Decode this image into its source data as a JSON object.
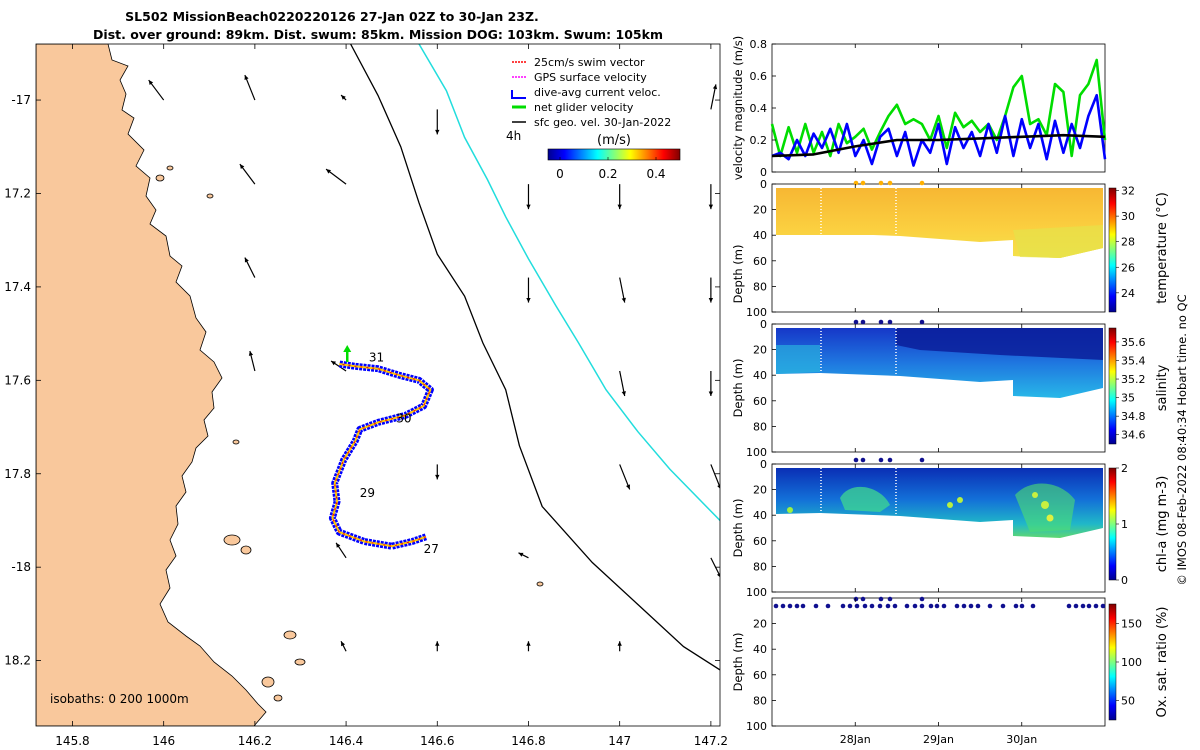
{
  "header": {
    "line1": "SL502 MissionBeach0220220126 27-Jan 02Z to 30-Jan 23Z.",
    "line2": "Dist. over ground: 89km. Dist. swum: 85km. Mission DOG: 103km. Swum: 105km"
  },
  "copyright": "© IMOS 08-Feb-2022 08:40:34 Hobart time. no QC",
  "colors": {
    "land": "#f9c89c",
    "gps": "#ff00ff",
    "swim": "#ff0000",
    "current": "#0000ff",
    "net": "#00dd00",
    "sfc": "#000000",
    "isobath200": "#000000",
    "isobath1000": "#22dddd"
  },
  "chart_data": [
    {
      "id": "map",
      "type": "scatter",
      "xlim": [
        145.72,
        147.22
      ],
      "ylim": [
        -18.34,
        -16.88
      ],
      "x_ticks": [
        145.8,
        146,
        146.2,
        146.4,
        146.6,
        146.8,
        147,
        147.2
      ],
      "y_ticks": [
        -17,
        -17.2,
        -17.4,
        -17.6,
        -17.8,
        -18,
        -18.2
      ],
      "x_tick_labels": [
        "145.8",
        "146",
        "146.2",
        "146.4",
        "146.6",
        "146.8",
        "147",
        "147.2"
      ],
      "y_tick_labels": [
        "-17",
        "17.2",
        "17.4",
        "17.6",
        "17.8",
        "-18",
        "18.2"
      ],
      "legend": {
        "entries": [
          "25cm/s swim vector",
          "GPS surface velocity",
          "dive-avg current veloc.",
          "net glider velocity",
          "sfc geo. vel. 30-Jan-2022"
        ],
        "scale_label": "4h",
        "colorbar_title": "(m/s)",
        "colorbar_ticks": [
          0,
          0.2,
          0.4
        ],
        "colorbar_tick_labels": [
          "0",
          "0.2",
          "0.4"
        ],
        "colorbar_range": [
          -0.05,
          0.5
        ]
      },
      "isobath_label": "isobaths: 0   200  1000m",
      "day_labels": [
        {
          "text": "31",
          "lon": 146.45,
          "lat": -17.56
        },
        {
          "text": "30",
          "lon": 146.51,
          "lat": -17.69
        },
        {
          "text": "29",
          "lon": 146.43,
          "lat": -17.85
        },
        {
          "text": "27",
          "lon": 146.57,
          "lat": -17.97
        }
      ],
      "track": [
        [
          146.575,
          -17.935
        ],
        [
          146.545,
          -17.945
        ],
        [
          146.5,
          -17.955
        ],
        [
          146.44,
          -17.945
        ],
        [
          146.385,
          -17.925
        ],
        [
          146.37,
          -17.895
        ],
        [
          146.38,
          -17.86
        ],
        [
          146.375,
          -17.82
        ],
        [
          146.395,
          -17.77
        ],
        [
          146.42,
          -17.73
        ],
        [
          146.43,
          -17.705
        ],
        [
          146.47,
          -17.69
        ],
        [
          146.53,
          -17.675
        ],
        [
          146.57,
          -17.655
        ],
        [
          146.585,
          -17.62
        ],
        [
          146.56,
          -17.6
        ],
        [
          146.52,
          -17.59
        ],
        [
          146.47,
          -17.575
        ],
        [
          146.42,
          -17.57
        ],
        [
          146.385,
          -17.565
        ]
      ],
      "isobath_200": [
        [
          146.41,
          -16.88
        ],
        [
          146.47,
          -16.99
        ],
        [
          146.52,
          -17.1
        ],
        [
          146.56,
          -17.22
        ],
        [
          146.6,
          -17.33
        ],
        [
          146.66,
          -17.42
        ],
        [
          146.7,
          -17.52
        ],
        [
          146.75,
          -17.62
        ],
        [
          146.78,
          -17.74
        ],
        [
          146.83,
          -17.87
        ],
        [
          146.94,
          -17.99
        ],
        [
          147.04,
          -18.08
        ],
        [
          147.14,
          -18.17
        ],
        [
          147.22,
          -18.22
        ]
      ],
      "isobath_1000": [
        [
          146.56,
          -16.88
        ],
        [
          146.62,
          -16.98
        ],
        [
          146.66,
          -17.08
        ],
        [
          146.71,
          -17.17
        ],
        [
          146.75,
          -17.25
        ],
        [
          146.8,
          -17.34
        ],
        [
          146.86,
          -17.44
        ],
        [
          146.91,
          -17.52
        ],
        [
          146.97,
          -17.62
        ],
        [
          147.04,
          -17.71
        ],
        [
          147.11,
          -17.79
        ],
        [
          147.22,
          -17.9
        ]
      ],
      "sfc_vectors": [
        {
          "lon": 146.0,
          "lat": -17.0,
          "u": -0.03,
          "v": 0.04
        },
        {
          "lon": 146.2,
          "lat": -17.0,
          "u": -0.02,
          "v": 0.05
        },
        {
          "lon": 146.4,
          "lat": -17.0,
          "u": -0.01,
          "v": 0.01
        },
        {
          "lon": 146.6,
          "lat": -17.02,
          "u": 0.0,
          "v": -0.05
        },
        {
          "lon": 147.2,
          "lat": -17.02,
          "u": 0.01,
          "v": 0.05
        },
        {
          "lon": 146.2,
          "lat": -17.18,
          "u": -0.03,
          "v": 0.04
        },
        {
          "lon": 146.4,
          "lat": -17.18,
          "u": -0.04,
          "v": 0.03
        },
        {
          "lon": 146.8,
          "lat": -17.18,
          "u": 0.0,
          "v": -0.05
        },
        {
          "lon": 147.0,
          "lat": -17.18,
          "u": 0.0,
          "v": -0.05
        },
        {
          "lon": 147.2,
          "lat": -17.18,
          "u": 0.0,
          "v": -0.05
        },
        {
          "lon": 146.2,
          "lat": -17.38,
          "u": -0.02,
          "v": 0.04
        },
        {
          "lon": 146.8,
          "lat": -17.38,
          "u": 0.0,
          "v": -0.05
        },
        {
          "lon": 147.0,
          "lat": -17.38,
          "u": 0.01,
          "v": -0.05
        },
        {
          "lon": 147.2,
          "lat": -17.38,
          "u": 0.0,
          "v": -0.05
        },
        {
          "lon": 146.2,
          "lat": -17.58,
          "u": -0.01,
          "v": 0.04
        },
        {
          "lon": 146.4,
          "lat": -17.58,
          "u": -0.03,
          "v": 0.02
        },
        {
          "lon": 147.0,
          "lat": -17.58,
          "u": 0.01,
          "v": -0.05
        },
        {
          "lon": 147.2,
          "lat": -17.58,
          "u": 0.0,
          "v": -0.05
        },
        {
          "lon": 146.6,
          "lat": -17.78,
          "u": 0.0,
          "v": -0.03
        },
        {
          "lon": 147.0,
          "lat": -17.78,
          "u": 0.02,
          "v": -0.05
        },
        {
          "lon": 147.2,
          "lat": -17.78,
          "u": 0.02,
          "v": -0.05
        },
        {
          "lon": 146.4,
          "lat": -17.98,
          "u": -0.02,
          "v": 0.03
        },
        {
          "lon": 146.8,
          "lat": -17.98,
          "u": -0.02,
          "v": 0.01
        },
        {
          "lon": 147.2,
          "lat": -17.98,
          "u": 0.02,
          "v": -0.04
        },
        {
          "lon": 146.4,
          "lat": -18.18,
          "u": -0.01,
          "v": 0.02
        },
        {
          "lon": 146.6,
          "lat": -18.18,
          "u": 0.0,
          "v": 0.02
        },
        {
          "lon": 146.8,
          "lat": -18.18,
          "u": 0.0,
          "v": 0.02
        },
        {
          "lon": 147.0,
          "lat": -18.18,
          "u": 0.0,
          "v": 0.02
        }
      ]
    },
    {
      "id": "velocity",
      "type": "line",
      "ylabel": "velocity magnitude (m/s)",
      "ylim": [
        0,
        0.8
      ],
      "y_ticks": [
        0,
        0.2,
        0.4,
        0.6,
        0.8
      ],
      "y_tick_labels": [
        "0",
        "0.2",
        "0.4",
        "0.6",
        "0.8"
      ],
      "xlim": [
        27.0,
        31.0
      ],
      "series": [
        {
          "name": "net glider velocity",
          "color": "#00dd00",
          "x": [
            27.0,
            27.1,
            27.2,
            27.3,
            27.4,
            27.5,
            27.6,
            27.7,
            27.8,
            27.9,
            28.0,
            28.1,
            28.2,
            28.3,
            28.4,
            28.5,
            28.6,
            28.7,
            28.8,
            28.9,
            29.0,
            29.1,
            29.2,
            29.3,
            29.4,
            29.5,
            29.6,
            29.7,
            29.8,
            29.9,
            30.0,
            30.1,
            30.2,
            30.3,
            30.4,
            30.5,
            30.6,
            30.7,
            30.8,
            30.9,
            31.0
          ],
          "values": [
            0.3,
            0.1,
            0.28,
            0.12,
            0.3,
            0.12,
            0.25,
            0.1,
            0.3,
            0.18,
            0.22,
            0.27,
            0.14,
            0.25,
            0.35,
            0.42,
            0.3,
            0.33,
            0.3,
            0.2,
            0.35,
            0.15,
            0.37,
            0.28,
            0.32,
            0.25,
            0.3,
            0.2,
            0.35,
            0.53,
            0.6,
            0.3,
            0.33,
            0.23,
            0.55,
            0.5,
            0.1,
            0.48,
            0.55,
            0.7,
            0.2
          ]
        },
        {
          "name": "dive-avg current veloc.",
          "color": "#0000ff",
          "x": [
            27.0,
            27.1,
            27.2,
            27.3,
            27.4,
            27.5,
            27.6,
            27.7,
            27.8,
            27.9,
            28.0,
            28.1,
            28.2,
            28.3,
            28.4,
            28.5,
            28.6,
            28.7,
            28.8,
            28.9,
            29.0,
            29.1,
            29.2,
            29.3,
            29.4,
            29.5,
            29.6,
            29.7,
            29.8,
            29.9,
            30.0,
            30.1,
            30.2,
            30.3,
            30.4,
            30.5,
            30.6,
            30.7,
            30.8,
            30.9,
            31.0
          ],
          "values": [
            0.1,
            0.12,
            0.08,
            0.2,
            0.1,
            0.24,
            0.15,
            0.27,
            0.12,
            0.3,
            0.1,
            0.2,
            0.05,
            0.22,
            0.27,
            0.1,
            0.25,
            0.04,
            0.2,
            0.12,
            0.3,
            0.05,
            0.28,
            0.15,
            0.25,
            0.1,
            0.3,
            0.12,
            0.35,
            0.1,
            0.33,
            0.15,
            0.3,
            0.08,
            0.32,
            0.12,
            0.3,
            0.15,
            0.35,
            0.48,
            0.08
          ]
        },
        {
          "name": "sfc geo. vel.",
          "color": "#000000",
          "x": [
            27.0,
            27.5,
            28.0,
            28.5,
            29.0,
            29.5,
            30.0,
            30.5,
            31.0
          ],
          "values": [
            0.1,
            0.11,
            0.16,
            0.2,
            0.2,
            0.21,
            0.22,
            0.23,
            0.22
          ]
        }
      ]
    },
    {
      "id": "temperature",
      "type": "heatmap",
      "ylabel": "Depth (m)",
      "colorbar_label": "temperature (°C)",
      "ylim": [
        0,
        100
      ],
      "y_ticks": [
        0,
        20,
        40,
        60,
        80,
        100
      ],
      "y_tick_labels": [
        "0",
        "20",
        "40",
        "60",
        "80",
        "100"
      ],
      "colorbar_range": [
        22.5,
        32.2
      ],
      "colorbar_ticks": [
        24,
        26,
        28,
        30,
        32
      ],
      "colorbar_tick_labels": [
        "24",
        "26",
        "28",
        "30",
        "32"
      ]
    },
    {
      "id": "salinity",
      "type": "heatmap",
      "ylabel": "Depth (m)",
      "colorbar_label": "salinity",
      "ylim": [
        0,
        100
      ],
      "y_ticks": [
        0,
        20,
        40,
        60,
        80,
        100
      ],
      "y_tick_labels": [
        "0",
        "20",
        "40",
        "60",
        "80",
        "100"
      ],
      "colorbar_range": [
        34.5,
        35.75
      ],
      "colorbar_ticks": [
        34.6,
        34.8,
        35,
        35.2,
        35.4,
        35.6
      ],
      "colorbar_tick_labels": [
        "34.6",
        "34.8",
        "35",
        "35.2",
        "35.4",
        "35.6"
      ]
    },
    {
      "id": "chla",
      "type": "heatmap",
      "ylabel": "Depth (m)",
      "colorbar_label": "chl-a (mg m-3)",
      "ylim": [
        0,
        100
      ],
      "y_ticks": [
        0,
        20,
        40,
        60,
        80,
        100
      ],
      "y_tick_labels": [
        "0",
        "20",
        "40",
        "60",
        "80",
        "100"
      ],
      "colorbar_range": [
        0,
        2
      ],
      "colorbar_ticks": [
        0,
        1,
        2
      ],
      "colorbar_tick_labels": [
        "0",
        "1",
        "2"
      ]
    },
    {
      "id": "oxygen",
      "type": "heatmap",
      "ylabel": "Depth (m)",
      "colorbar_label": "Ox. sat. ratio (%)",
      "ylim": [
        0,
        100
      ],
      "y_ticks": [
        20,
        40,
        60,
        80,
        100
      ],
      "y_tick_labels": [
        "20",
        "40",
        "60",
        "80",
        "100"
      ],
      "colorbar_range": [
        25,
        175
      ],
      "colorbar_ticks": [
        50,
        100,
        150
      ],
      "colorbar_tick_labels": [
        "50",
        "100",
        "150"
      ],
      "x_ticks": [
        28.0,
        29.0,
        30.0
      ],
      "x_tick_labels": [
        "28Jan",
        "29Jan",
        "30Jan"
      ]
    }
  ]
}
